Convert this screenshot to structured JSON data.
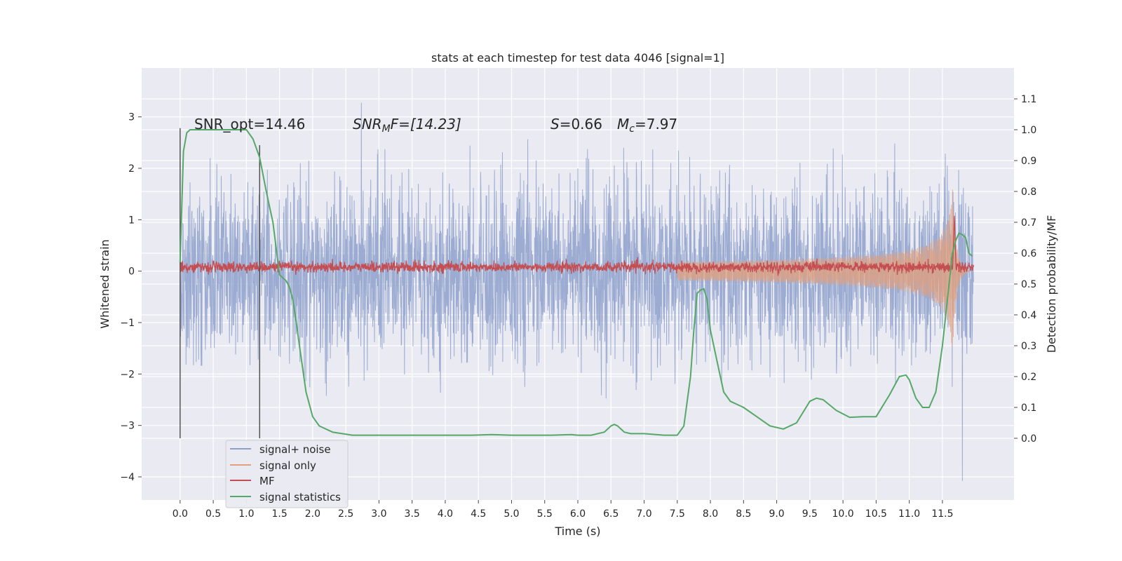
{
  "chart_data": {
    "type": "line",
    "title": "stats at each timestep for test data 4046 [signal=1]",
    "xlabel": "Time (s)",
    "ylabel_left": "Whitened strain",
    "ylabel_right": "Detection probability/MF",
    "xlim": [
      -0.58,
      12.58
    ],
    "ylim_left": [
      -4.45,
      3.95
    ],
    "ylim_right": [
      -0.2,
      1.2
    ],
    "x_ticks": [
      "0.0",
      "0.5",
      "1.0",
      "1.5",
      "2.0",
      "2.5",
      "3.0",
      "3.5",
      "4.0",
      "4.5",
      "5.0",
      "5.5",
      "6.0",
      "6.5",
      "7.0",
      "7.5",
      "8.0",
      "8.5",
      "9.0",
      "9.5",
      "10.0",
      "10.5",
      "11.0",
      "11.5"
    ],
    "y_ticks_left": [
      "3",
      "2",
      "1",
      "0",
      "−1",
      "−2",
      "−3",
      "−4"
    ],
    "y_ticks_right": [
      "1.1",
      "1.0",
      "0.9",
      "0.8",
      "0.7",
      "0.6",
      "0.5",
      "0.4",
      "0.3",
      "0.2",
      "0.1",
      "0.0"
    ],
    "grid": true,
    "legend_position": "lower-left",
    "annotations": {
      "snr_opt": "SNR_opt=14.46",
      "snr_mf": "SNR",
      "snr_mf_sub": "M",
      "snr_mf_rest": "F=[14.23]",
      "spin": "S",
      "spin_rest": "=0.66",
      "mc": "M",
      "mc_sub": "c",
      "mc_rest": "=7.97"
    },
    "vertical_lines": [
      {
        "x": 0.0,
        "y_range": [
          -3.25,
          2.78
        ]
      },
      {
        "x": 1.2,
        "y_range": [
          -3.25,
          2.45
        ]
      }
    ],
    "series": [
      {
        "name": "signal+ noise",
        "color": "#8da0cb",
        "x_range": [
          0.0,
          11.97
        ],
        "envelope_sigma": 0.85,
        "peak_max": 3.6,
        "peak_min": -4.1
      },
      {
        "name": "signal only",
        "color": "#e0a080",
        "x_range": [
          7.5,
          11.9
        ],
        "amplitude_end": 1.7,
        "peak_time": 11.65
      },
      {
        "name": "MF",
        "color": "#c44e52",
        "x_range": [
          0.0,
          11.97
        ],
        "mean": 0.08,
        "noise": 0.1,
        "spike_x": 11.68,
        "spike_y": 1.0
      },
      {
        "name": "signal statistics",
        "color": "#55a868",
        "axis": "right",
        "x": [
          0.0,
          0.05,
          0.1,
          0.15,
          0.2,
          0.3,
          0.5,
          0.8,
          1.0,
          1.1,
          1.2,
          1.3,
          1.4,
          1.5,
          1.6,
          1.65,
          1.7,
          1.75,
          1.8,
          1.9,
          2.0,
          2.1,
          2.3,
          2.6,
          3.0,
          3.5,
          4.0,
          4.4,
          4.7,
          5.0,
          5.3,
          5.6,
          5.9,
          6.0,
          6.2,
          6.4,
          6.5,
          6.55,
          6.6,
          6.7,
          6.8,
          7.0,
          7.3,
          7.5,
          7.6,
          7.7,
          7.75,
          7.8,
          7.85,
          7.9,
          7.95,
          8.0,
          8.1,
          8.2,
          8.3,
          8.5,
          8.7,
          8.9,
          9.1,
          9.3,
          9.5,
          9.6,
          9.7,
          9.9,
          10.1,
          10.3,
          10.5,
          10.7,
          10.85,
          10.95,
          11.0,
          11.1,
          11.2,
          11.3,
          11.4,
          11.5,
          11.6,
          11.65,
          11.7,
          11.75,
          11.8,
          11.85,
          11.9,
          11.95
        ],
        "y": [
          0.57,
          0.93,
          0.99,
          1.0,
          1.0,
          1.0,
          1.0,
          1.0,
          1.0,
          0.97,
          0.91,
          0.8,
          0.7,
          0.53,
          0.51,
          0.49,
          0.45,
          0.38,
          0.3,
          0.15,
          0.07,
          0.04,
          0.02,
          0.01,
          0.01,
          0.01,
          0.01,
          0.01,
          0.012,
          0.01,
          0.01,
          0.01,
          0.012,
          0.01,
          0.01,
          0.02,
          0.04,
          0.045,
          0.04,
          0.02,
          0.015,
          0.015,
          0.01,
          0.01,
          0.04,
          0.2,
          0.35,
          0.47,
          0.48,
          0.485,
          0.45,
          0.35,
          0.25,
          0.15,
          0.12,
          0.1,
          0.07,
          0.04,
          0.03,
          0.05,
          0.12,
          0.13,
          0.125,
          0.09,
          0.068,
          0.07,
          0.07,
          0.14,
          0.2,
          0.205,
          0.19,
          0.13,
          0.1,
          0.1,
          0.15,
          0.3,
          0.5,
          0.6,
          0.64,
          0.665,
          0.66,
          0.65,
          0.6,
          0.59
        ]
      }
    ]
  }
}
